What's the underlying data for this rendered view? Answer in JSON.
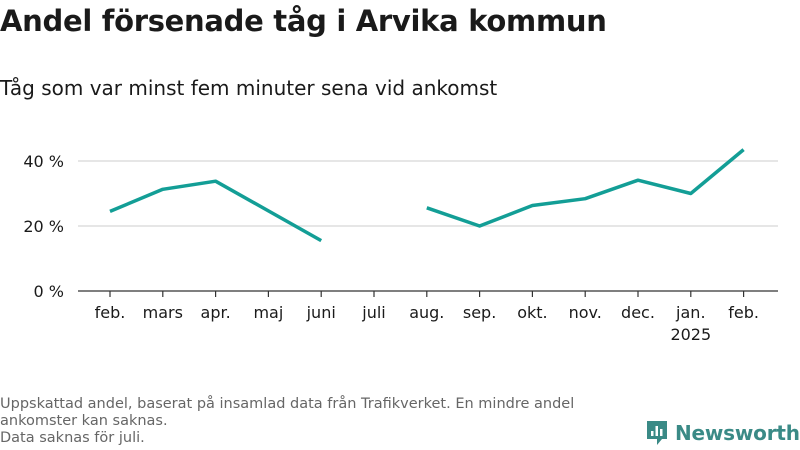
{
  "title": "Andel försenade tåg i Arvika kommun",
  "subtitle": "Tåg som var minst fem minuter sena vid ankomst",
  "footnote": {
    "line1": "Uppskattad andel, baserat på insamlad data från Trafikverket. En mindre andel ankomster kan saknas.",
    "line2": "Data saknas för juli."
  },
  "brand": {
    "name": "Newsworthy"
  },
  "colors": {
    "line": "#139e96",
    "grid": "#dddddd",
    "axis": "#333333",
    "text": "#1a1a1a",
    "muted": "#666666",
    "brand": "#3a8a86"
  },
  "chart_data": {
    "type": "line",
    "title": "Andel försenade tåg i Arvika kommun",
    "subtitle": "Tåg som var minst fem minuter sena vid ankomst",
    "categories": [
      "feb.",
      "mars",
      "apr.",
      "maj",
      "juni",
      "juli",
      "aug.",
      "sep.",
      "okt.",
      "nov.",
      "dec.",
      "jan.",
      "feb."
    ],
    "category_sublabels": [
      "",
      "",
      "",
      "",
      "",
      "",
      "",
      "",
      "",
      "",
      "",
      "2025",
      ""
    ],
    "values": [
      24.5,
      31.3,
      33.8,
      null,
      15.5,
      null,
      25.6,
      20.0,
      26.3,
      28.4,
      34.1,
      30.0,
      43.5
    ],
    "yticks": [
      0,
      20,
      40
    ],
    "ytick_labels": [
      "0 %",
      "20 %",
      "40 %"
    ],
    "ylim": [
      0,
      50
    ],
    "grid": true,
    "legend": "none"
  }
}
